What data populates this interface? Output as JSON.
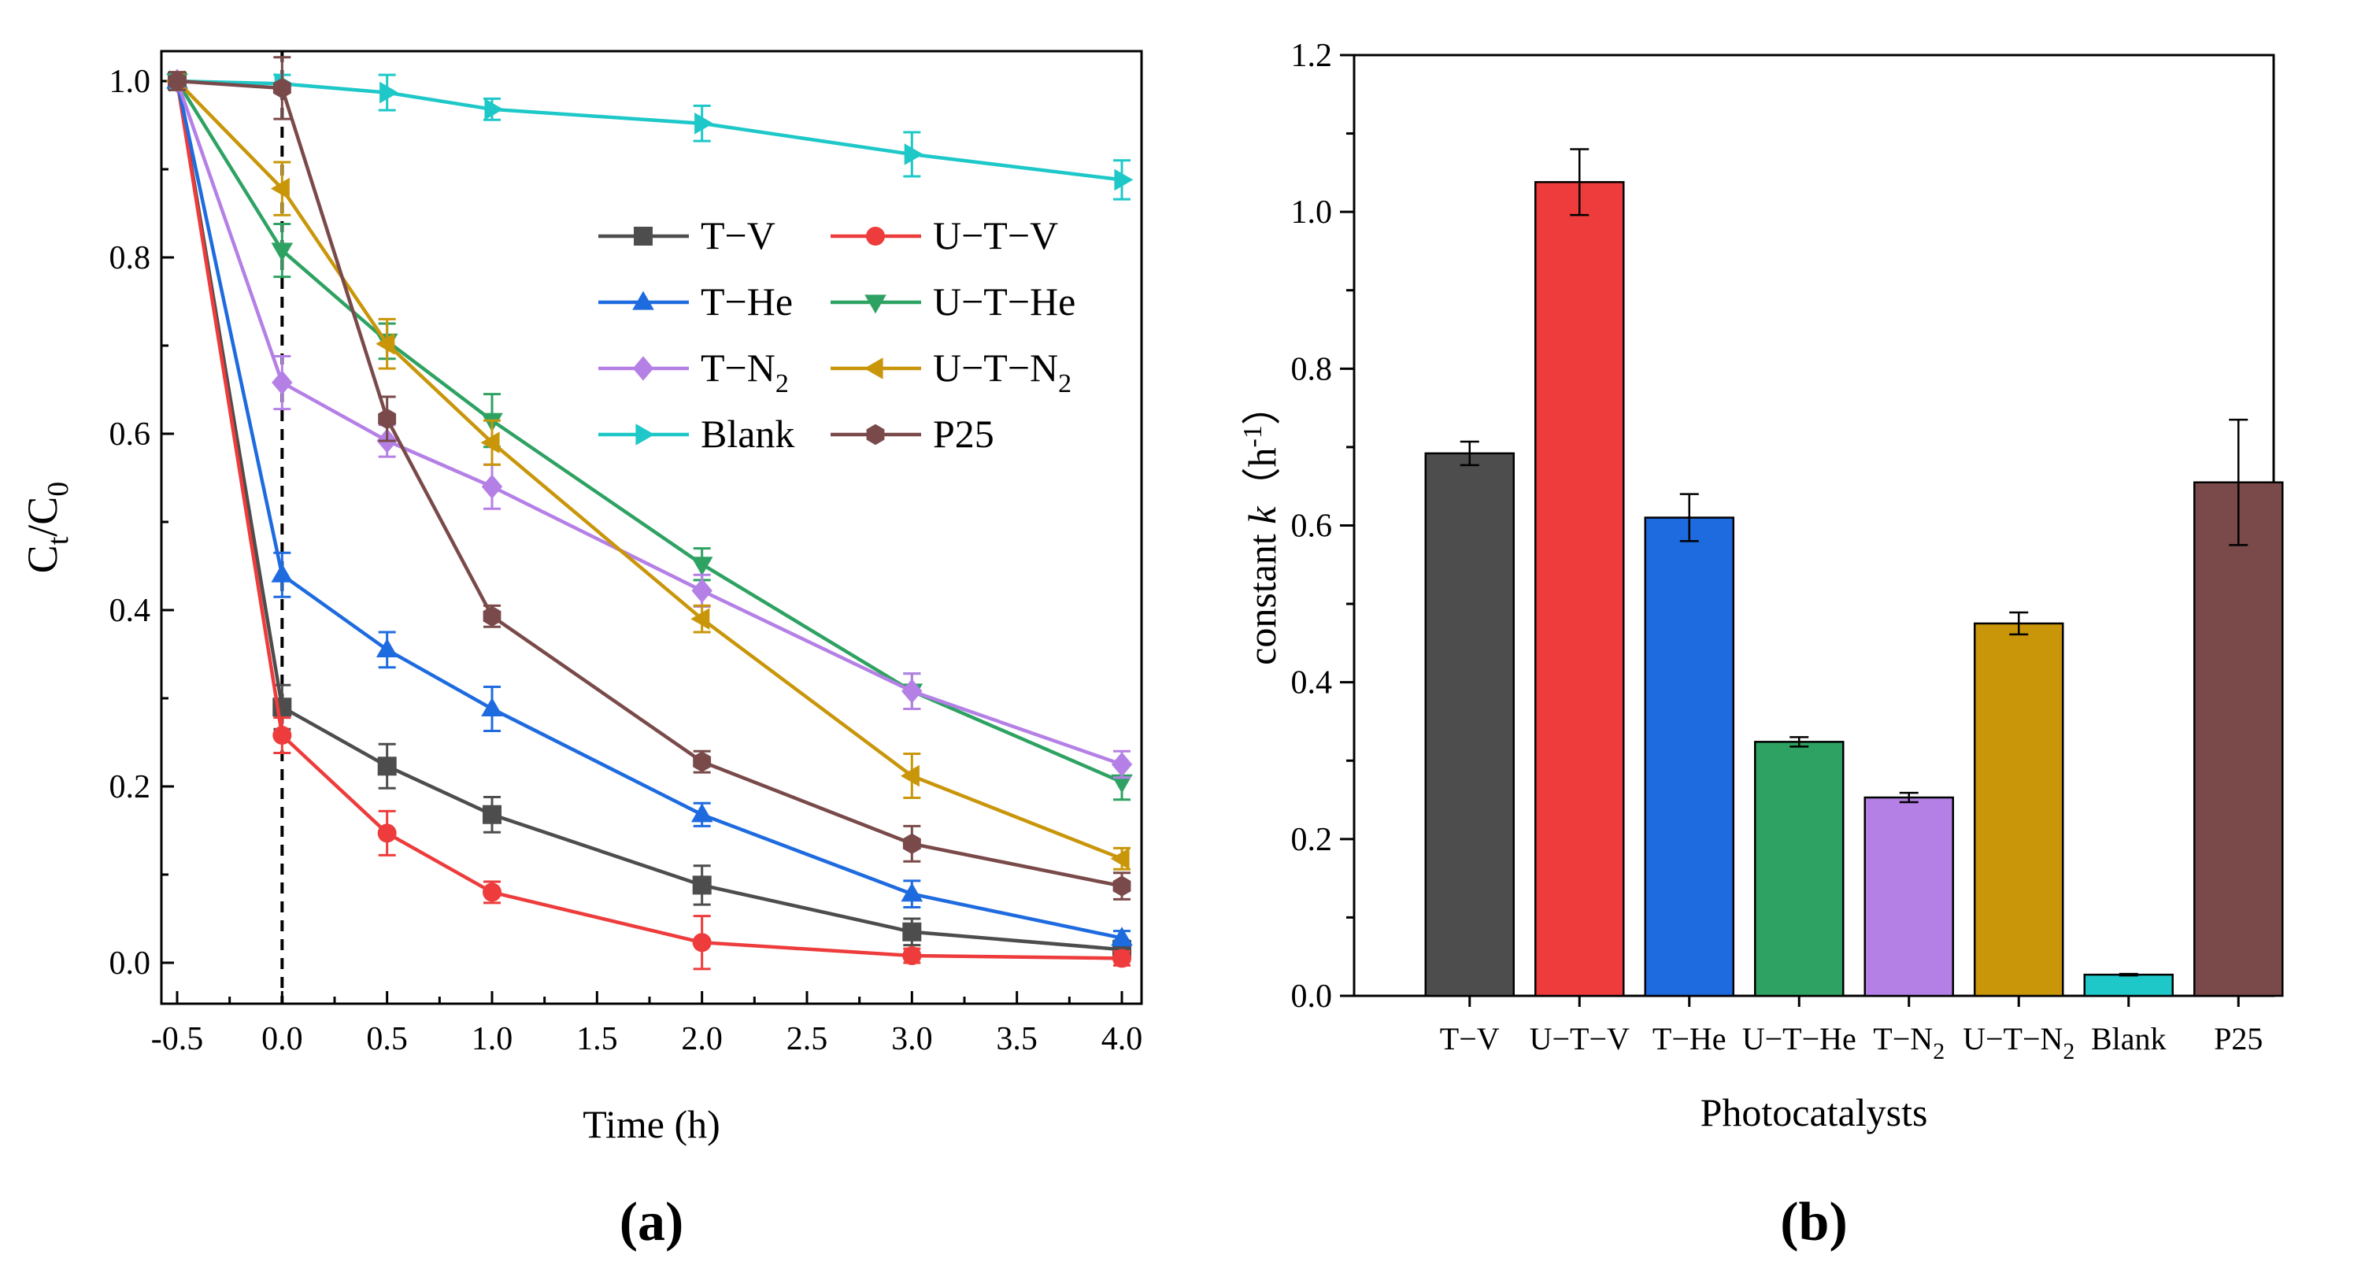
{
  "chart_data": [
    {
      "type": "line",
      "panel_label": "(a)",
      "xlabel": "Time (h)",
      "ylabel": {
        "main": "C",
        "sub1": "t",
        "slash": "/C",
        "sub2": "0"
      },
      "x": [
        -0.5,
        0.0,
        0.5,
        1.0,
        2.0,
        3.0,
        4.0
      ],
      "xlim": [
        -0.5,
        4.0
      ],
      "ylim": [
        0.0,
        1.0
      ],
      "xticks": [
        "-0.5",
        "0.0",
        "0.5",
        "1.0",
        "1.5",
        "2.0",
        "2.5",
        "3.0",
        "3.5",
        "4.0"
      ],
      "yticks": [
        "0.0",
        "0.2",
        "0.4",
        "0.6",
        "0.8",
        "1.0"
      ],
      "grid": false,
      "dashed_vline_at": 0.0,
      "legend_position": "upper-right",
      "series": [
        {
          "name": "T−V",
          "sub": "",
          "color": "#4d4d4d",
          "marker": "square",
          "values": [
            1.0,
            0.29,
            0.223,
            0.168,
            0.088,
            0.035,
            0.015
          ],
          "errors": [
            0.01,
            0.025,
            0.025,
            0.02,
            0.022,
            0.015,
            0.01
          ]
        },
        {
          "name": "U−T−V",
          "sub": "",
          "color": "#ee3b3b",
          "marker": "circle",
          "values": [
            1.0,
            0.258,
            0.147,
            0.08,
            0.023,
            0.008,
            0.005
          ],
          "errors": [
            0.01,
            0.02,
            0.025,
            0.012,
            0.03,
            0.008,
            0.008
          ]
        },
        {
          "name": "T−He",
          "sub": "",
          "color": "#1e6be0",
          "marker": "triangle-up",
          "values": [
            1.0,
            0.44,
            0.355,
            0.288,
            0.168,
            0.078,
            0.028
          ],
          "errors": [
            0.01,
            0.025,
            0.02,
            0.025,
            0.013,
            0.015,
            0.008
          ]
        },
        {
          "name": "U−T−He",
          "sub": "",
          "color": "#2ea262",
          "marker": "triangle-down",
          "values": [
            1.0,
            0.808,
            0.705,
            0.615,
            0.452,
            0.308,
            0.205
          ],
          "errors": [
            0.01,
            0.03,
            0.02,
            0.03,
            0.018,
            0.02,
            0.02
          ]
        },
        {
          "name": "T−N",
          "sub": "2",
          "color": "#b580e6",
          "marker": "diamond",
          "values": [
            1.0,
            0.658,
            0.592,
            0.54,
            0.422,
            0.308,
            0.225
          ],
          "errors": [
            0.01,
            0.03,
            0.018,
            0.025,
            0.018,
            0.02,
            0.015
          ]
        },
        {
          "name": "U−T−N",
          "sub": "2",
          "color": "#c9960a",
          "marker": "triangle-left",
          "values": [
            1.0,
            0.878,
            0.702,
            0.59,
            0.39,
            0.212,
            0.118
          ],
          "errors": [
            0.01,
            0.03,
            0.028,
            0.025,
            0.015,
            0.025,
            0.012
          ]
        },
        {
          "name": "Blank",
          "sub": "",
          "color": "#1ec8c8",
          "marker": "triangle-right",
          "values": [
            1.0,
            0.997,
            0.987,
            0.968,
            0.952,
            0.917,
            0.888
          ],
          "errors": [
            0.005,
            0.01,
            0.02,
            0.012,
            0.02,
            0.025,
            0.022
          ]
        },
        {
          "name": "P25",
          "sub": "",
          "color": "#7a4a4a",
          "marker": "hexagon",
          "values": [
            1.0,
            0.992,
            0.617,
            0.393,
            0.228,
            0.135,
            0.087
          ],
          "errors": [
            0.01,
            0.035,
            0.025,
            0.012,
            0.012,
            0.02,
            0.015
          ]
        }
      ]
    },
    {
      "type": "bar",
      "panel_label": "(b)",
      "xlabel": "Photocatalysts",
      "ylabel": {
        "main": "constant ",
        "italic": "k",
        "unit_open": "（h",
        "sup": "-1",
        "unit_close": "）"
      },
      "ylim": [
        0.0,
        1.2
      ],
      "yticks": [
        "0.0",
        "0.2",
        "0.4",
        "0.6",
        "0.8",
        "1.0",
        "1.2"
      ],
      "grid": false,
      "categories": [
        {
          "name": "T−V",
          "sub": ""
        },
        {
          "name": "U−T−V",
          "sub": ""
        },
        {
          "name": "T−He",
          "sub": ""
        },
        {
          "name": "U−T−He",
          "sub": ""
        },
        {
          "name": "T−N",
          "sub": "2"
        },
        {
          "name": "U−T−N",
          "sub": "2"
        },
        {
          "name": "Blank",
          "sub": ""
        },
        {
          "name": "P25",
          "sub": ""
        }
      ],
      "values": [
        0.692,
        1.038,
        0.61,
        0.324,
        0.253,
        0.475,
        0.027,
        0.655
      ],
      "errors": [
        0.015,
        0.042,
        0.03,
        0.006,
        0.006,
        0.014,
        0.001,
        0.08
      ],
      "colors": [
        "#4d4d4d",
        "#ee3b3b",
        "#1e6be0",
        "#2ea262",
        "#b580e6",
        "#c9960a",
        "#1ec8c8",
        "#7a4a4a"
      ]
    }
  ]
}
